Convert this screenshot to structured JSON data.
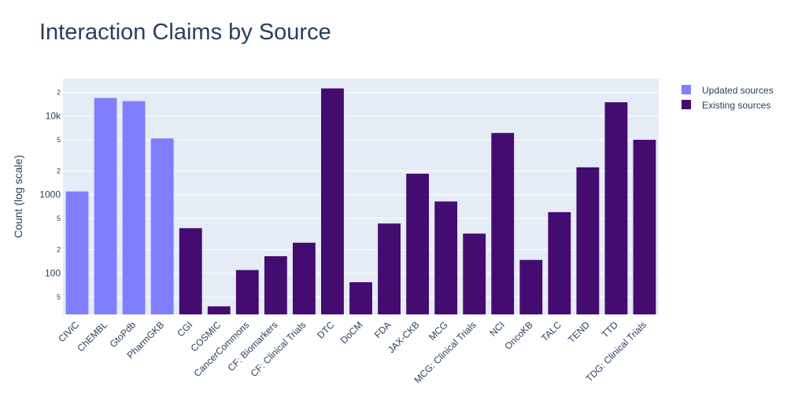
{
  "chart_data": {
    "type": "bar",
    "title": "Interaction Claims by Source",
    "xlabel": "",
    "ylabel": "Count (log scale)",
    "yscale": "log",
    "ylim": [
      30,
      30000
    ],
    "y_major_ticks": [
      {
        "value": 100,
        "label": "100"
      },
      {
        "value": 1000,
        "label": "1000"
      },
      {
        "value": 10000,
        "label": "10k"
      }
    ],
    "y_minor_ticks": [
      {
        "value": 50,
        "label": "5"
      },
      {
        "value": 200,
        "label": "2"
      },
      {
        "value": 500,
        "label": "5"
      },
      {
        "value": 2000,
        "label": "2"
      },
      {
        "value": 5000,
        "label": "5"
      },
      {
        "value": 20000,
        "label": "2"
      }
    ],
    "grid": true,
    "legend_position": "top-right",
    "categories": [
      "CIViC",
      "ChEMBL",
      "GtoPdb",
      "PharmGKB",
      "CGI",
      "COSMIC",
      "CancerCommons",
      "CF: Biomarkers",
      "CF: Clinical Trials",
      "DTC",
      "DoCM",
      "FDA",
      "JAX-CKB",
      "MCG",
      "MCG: Clinical Trials",
      "NCI",
      "OncoKB",
      "TALC",
      "TEND",
      "TTD",
      "TDG: Clinical Trials"
    ],
    "series": [
      {
        "name": "Updated sources",
        "color": "#7f7ffe",
        "values": [
          1100,
          17000,
          15500,
          5200,
          null,
          null,
          null,
          null,
          null,
          null,
          null,
          null,
          null,
          null,
          null,
          null,
          null,
          null,
          null,
          null,
          null
        ]
      },
      {
        "name": "Existing sources",
        "color": "#440c70",
        "values": [
          null,
          null,
          null,
          null,
          375,
          38,
          110,
          165,
          245,
          22500,
          77,
          430,
          1850,
          820,
          320,
          6100,
          148,
          600,
          2230,
          15000,
          5000
        ]
      }
    ]
  },
  "colors": {
    "plot_background": "#e5ecf6",
    "grid": "#ffffff",
    "text": "#2a3f5f"
  }
}
